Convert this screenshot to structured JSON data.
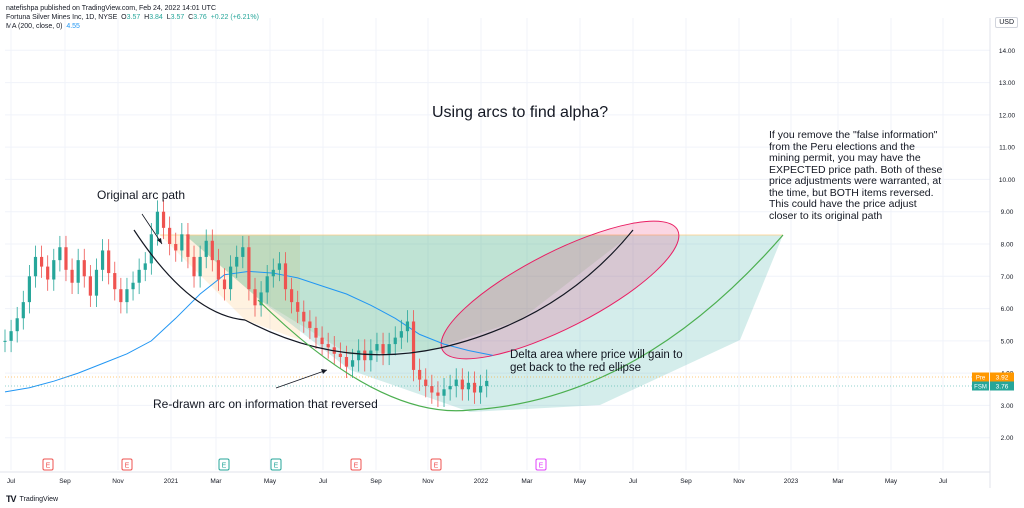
{
  "header": {
    "line1": "natefishpa published on TradingView.com, Feb 24, 2022 14:01 UTC",
    "symbol": "Fortuna Silver Mines Inc, 1D, NYSE",
    "o_label": "O",
    "o_val": "3.57",
    "h_label": "H",
    "h_val": "3.84",
    "l_label": "L",
    "l_val": "3.57",
    "c_label": "C",
    "c_val": "3.76",
    "change": "+0.22 (+6.21%)",
    "ma_label": "MA (200, close, 0)",
    "ma_val": "4.55"
  },
  "currency": "USD",
  "footer": {
    "logo": "TV",
    "brand": "TradingView"
  },
  "annotations": {
    "title": "Using arcs to find alpha?",
    "original_arc": "Original arc path",
    "redrawn_arc": "Re-drawn arc on information that reversed",
    "delta_line1": "Delta area where price will gain to",
    "delta_line2": "get back to the red ellipse",
    "note_lines": [
      "If you remove the \"false information\"",
      "from the Peru elections and the",
      "mining permit, you may have the",
      "EXPECTED price path.  Both of these",
      "price adjustments were warranted, at",
      "the time, but BOTH items reversed.",
      "This could have the price adjust",
      "closer to its original path"
    ]
  },
  "price_tags": [
    {
      "label": "Pre",
      "value": "3.92",
      "color": "#ff9800"
    },
    {
      "label": "FSM",
      "value": "3.76",
      "color": "#26a69a"
    }
  ],
  "earnings_markers": [
    {
      "x_label": "Aug 2020",
      "letter": "E",
      "color": "#ef5350"
    },
    {
      "x_label": "Nov 2020",
      "letter": "E",
      "color": "#ef5350"
    },
    {
      "x_label": "Feb 2021",
      "letter": "E",
      "color": "#26a69a"
    },
    {
      "x_label": "May 2021",
      "letter": "E",
      "color": "#26a69a"
    },
    {
      "x_label": "Aug 2021",
      "letter": "E",
      "color": "#ef5350"
    },
    {
      "x_label": "Nov 2021",
      "letter": "E",
      "color": "#ef5350"
    },
    {
      "x_label": "Mar 2022",
      "letter": "E",
      "color": "#e040fb"
    }
  ],
  "chart_data": {
    "type": "line",
    "title": "",
    "xlabel": "",
    "ylabel": "",
    "y_ticks": [
      "2.00",
      "3.00",
      "4.00",
      "5.00",
      "6.00",
      "7.00",
      "8.00",
      "9.00",
      "10.00",
      "11.00",
      "12.00",
      "13.00",
      "14.00"
    ],
    "x_ticks": [
      "Jul",
      "Sep",
      "Nov",
      "2021",
      "Mar",
      "May",
      "Jul",
      "Sep",
      "Nov",
      "2022",
      "Mar",
      "May",
      "Jul",
      "Sep",
      "Nov",
      "2023",
      "Mar",
      "May",
      "Jul"
    ],
    "ylim": [
      1.0,
      15.0
    ],
    "grid": true,
    "colors": {
      "up": "#26a69a",
      "down": "#ef5350",
      "ma": "#2196f3"
    },
    "series": [
      {
        "name": "Fortuna Silver Mines Inc",
        "kind": "candlestick_close",
        "x": [
          0,
          5,
          10,
          15,
          20,
          25,
          30,
          35,
          40,
          45,
          50,
          55,
          60,
          65,
          70,
          75,
          80,
          85,
          90,
          95,
          100,
          105,
          110,
          115,
          120,
          125,
          130,
          135,
          140,
          145,
          150,
          155,
          160,
          165,
          170,
          175,
          180,
          185,
          190,
          195,
          200,
          205,
          210,
          215,
          220,
          225,
          230,
          235,
          240,
          245,
          250,
          255,
          260,
          265,
          270,
          275,
          280,
          285,
          290,
          295,
          300,
          305,
          310,
          315,
          320,
          325,
          330,
          335,
          340,
          345,
          350,
          355,
          360,
          365,
          370,
          375,
          380,
          385,
          390,
          395
        ],
        "values": [
          5.0,
          5.3,
          5.7,
          6.2,
          7.0,
          7.6,
          7.3,
          6.9,
          7.5,
          7.9,
          7.2,
          6.8,
          7.5,
          7.0,
          6.4,
          7.2,
          7.8,
          7.1,
          6.6,
          6.2,
          6.6,
          6.8,
          7.2,
          7.4,
          8.3,
          9.0,
          8.5,
          8.0,
          7.8,
          8.3,
          7.6,
          7.0,
          7.6,
          8.1,
          7.5,
          6.9,
          6.6,
          7.3,
          7.6,
          7.9,
          6.6,
          6.1,
          6.5,
          7.0,
          7.2,
          7.4,
          6.6,
          6.2,
          5.9,
          5.6,
          5.4,
          5.1,
          4.9,
          4.8,
          4.6,
          4.5,
          4.2,
          4.4,
          4.7,
          4.4,
          4.7,
          4.9,
          4.6,
          4.9,
          5.1,
          5.3,
          5.6,
          4.1,
          3.8,
          3.6,
          3.4,
          3.3,
          3.5,
          3.6,
          3.8,
          3.5,
          3.7,
          3.4,
          3.6,
          3.76
        ]
      },
      {
        "name": "MA (200, close, 0)",
        "x": [
          0,
          20,
          40,
          60,
          80,
          100,
          120,
          140,
          160,
          180,
          200,
          220,
          240,
          260,
          280,
          300,
          320,
          340,
          360,
          380,
          400
        ],
        "values": [
          3.42,
          3.55,
          3.75,
          4.0,
          4.3,
          4.6,
          5.0,
          5.7,
          6.45,
          7.05,
          7.15,
          7.1,
          6.95,
          6.7,
          6.45,
          6.1,
          5.7,
          5.2,
          4.9,
          4.7,
          4.55
        ]
      }
    ]
  }
}
